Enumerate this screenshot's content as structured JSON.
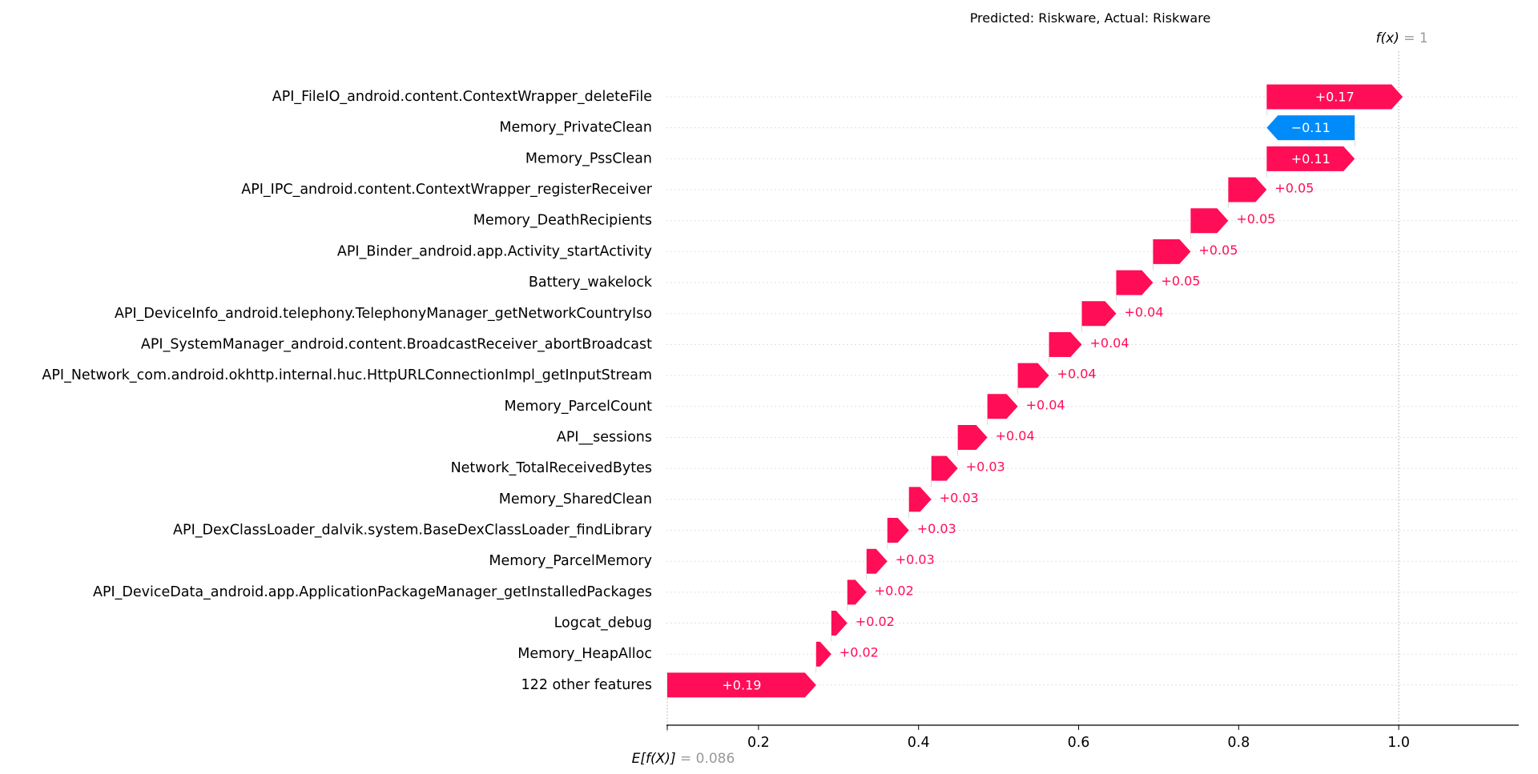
{
  "chart_data": {
    "type": "waterfall",
    "title": "Predicted: Riskware, Actual: Riskware",
    "base_value": 0.086,
    "final_value": 1,
    "base_label_math": "E[f(X)]",
    "base_label_value": " = 0.086",
    "final_label_math": "f(x)",
    "final_label_value": " = 1",
    "xlim": [
      0.085,
      1.15
    ],
    "xticks": [
      0.2,
      0.4,
      0.6,
      0.8,
      1.0
    ],
    "xtick_labels": [
      "0.2",
      "0.4",
      "0.6",
      "0.8",
      "1.0"
    ],
    "features": [
      {
        "name": "API_FileIO_android.content.ContextWrapper_deleteFile",
        "value": 0.17,
        "label": "+0.17"
      },
      {
        "name": "Memory_PrivateClean",
        "value": -0.11,
        "label": "−0.11"
      },
      {
        "name": "Memory_PssClean",
        "value": 0.11,
        "label": "+0.11"
      },
      {
        "name": "API_IPC_android.content.ContextWrapper_registerReceiver",
        "value": 0.048,
        "label": "+0.05"
      },
      {
        "name": "Memory_DeathRecipients",
        "value": 0.047,
        "label": "+0.05"
      },
      {
        "name": "API_Binder_android.app.Activity_startActivity",
        "value": 0.047,
        "label": "+0.05"
      },
      {
        "name": "Battery_wakelock",
        "value": 0.046,
        "label": "+0.05"
      },
      {
        "name": "API_DeviceInfo_android.telephony.TelephonyManager_getNetworkCountryIso",
        "value": 0.043,
        "label": "+0.04"
      },
      {
        "name": "API_SystemManager_android.content.BroadcastReceiver_abortBroadcast",
        "value": 0.041,
        "label": "+0.04"
      },
      {
        "name": "API_Network_com.android.okhttp.internal.huc.HttpURLConnectionImpl_getInputStream",
        "value": 0.039,
        "label": "+0.04"
      },
      {
        "name": "Memory_ParcelCount",
        "value": 0.038,
        "label": "+0.04"
      },
      {
        "name": "API__sessions",
        "value": 0.037,
        "label": "+0.04"
      },
      {
        "name": "Network_TotalReceivedBytes",
        "value": 0.033,
        "label": "+0.03"
      },
      {
        "name": "Memory_SharedClean",
        "value": 0.028,
        "label": "+0.03"
      },
      {
        "name": "API_DexClassLoader_dalvik.system.BaseDexClassLoader_findLibrary",
        "value": 0.027,
        "label": "+0.03"
      },
      {
        "name": "Memory_ParcelMemory",
        "value": 0.026,
        "label": "+0.03"
      },
      {
        "name": "API_DeviceData_android.app.ApplicationPackageManager_getInstalledPackages",
        "value": 0.024,
        "label": "+0.02"
      },
      {
        "name": "Logcat_debug",
        "value": 0.02,
        "label": "+0.02"
      },
      {
        "name": "Memory_HeapAlloc",
        "value": 0.019,
        "label": "+0.02"
      },
      {
        "name": "122 other features",
        "value": 0.186,
        "label": "+0.19"
      }
    ],
    "colors": {
      "positive": "#ff0d57",
      "negative": "#008bfb",
      "axis_annotation": "#999999",
      "grid": "#cccccc"
    },
    "grid": true
  }
}
